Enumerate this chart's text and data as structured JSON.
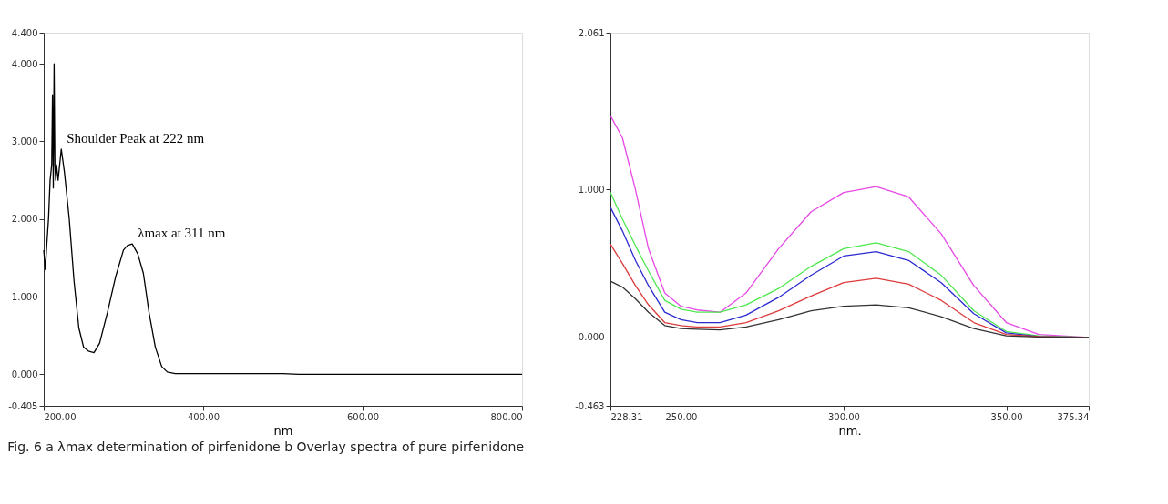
{
  "chart_data": [
    {
      "type": "line",
      "xlabel": "nm",
      "xlim": [
        200,
        800
      ],
      "ylim": [
        -0.405,
        4.4
      ],
      "xticks": [
        {
          "value": 200,
          "label": "200.00"
        },
        {
          "value": 400,
          "label": "400.00"
        },
        {
          "value": 600,
          "label": "600.00"
        },
        {
          "value": 800,
          "label": "800.00"
        }
      ],
      "yticks": [
        {
          "value": -0.405,
          "label": "-0.405"
        },
        {
          "value": 0,
          "label": "0.000"
        },
        {
          "value": 1,
          "label": "1.000"
        },
        {
          "value": 2,
          "label": "2.000"
        },
        {
          "value": 3,
          "label": "3.000"
        },
        {
          "value": 4,
          "label": "4.000"
        },
        {
          "value": 4.4,
          "label": "4.400"
        }
      ],
      "grid": false,
      "line_style": "solid",
      "annotations": [
        {
          "text": "Shoulder Peak at 222 nm",
          "x": 222,
          "y": 2.9
        },
        {
          "text": "λmax at 311 nm",
          "x": 311,
          "y": 1.68
        },
        "Fig. 6  a λmax determination of pirfenidone b Overlay spectra of pure pirfenidone"
      ],
      "series": [
        {
          "color": "#000000",
          "x": [
            200,
            202,
            204,
            206,
            208,
            210,
            211,
            212,
            213,
            214,
            215,
            216,
            218,
            220,
            222,
            226,
            232,
            238,
            244,
            250,
            256,
            263,
            270,
            280,
            290,
            300,
            305,
            311,
            318,
            325,
            332,
            340,
            348,
            355,
            365,
            400,
            500,
            520,
            800
          ],
          "values": [
            1.6,
            1.35,
            1.7,
            2.0,
            2.5,
            2.7,
            3.6,
            2.4,
            4.0,
            2.7,
            2.5,
            2.7,
            2.5,
            2.7,
            2.9,
            2.6,
            2.0,
            1.2,
            0.6,
            0.35,
            0.3,
            0.28,
            0.4,
            0.8,
            1.25,
            1.6,
            1.66,
            1.68,
            1.55,
            1.3,
            0.8,
            0.35,
            0.1,
            0.03,
            0.01,
            0.01,
            0.01,
            0.0,
            0.0
          ]
        }
      ]
    },
    {
      "type": "line",
      "xlabel": "nm.",
      "xlim": [
        228.31,
        375.34
      ],
      "ylim": [
        -0.463,
        2.061
      ],
      "xticks": [
        {
          "value": 228.31,
          "label": "228.31"
        },
        {
          "value": 250,
          "label": "250.00"
        },
        {
          "value": 300,
          "label": "300.00"
        },
        {
          "value": 350,
          "label": "350.00"
        },
        {
          "value": 375.34,
          "label": "375.34"
        }
      ],
      "yticks": [
        {
          "value": -0.463,
          "label": "-0.463"
        },
        {
          "value": 0,
          "label": "0.000"
        },
        {
          "value": 1,
          "label": "1.000"
        },
        {
          "value": 2.061,
          "label": "2.061"
        }
      ],
      "grid": false,
      "line_style": "solid",
      "x": [
        228.31,
        232,
        236,
        240,
        245,
        250,
        255,
        262,
        270,
        280,
        290,
        300,
        310,
        320,
        330,
        340,
        350,
        360,
        375.34
      ],
      "series": [
        {
          "color": "#e648e6",
          "values": [
            1.5,
            1.35,
            1.0,
            0.6,
            0.3,
            0.21,
            0.185,
            0.17,
            0.3,
            0.6,
            0.85,
            0.98,
            1.02,
            0.95,
            0.7,
            0.35,
            0.1,
            0.02,
            0.0
          ]
        },
        {
          "color": "#4ee84e",
          "values": [
            0.98,
            0.8,
            0.62,
            0.45,
            0.25,
            0.19,
            0.17,
            0.17,
            0.22,
            0.33,
            0.48,
            0.6,
            0.64,
            0.58,
            0.42,
            0.18,
            0.04,
            0.01,
            0.0
          ]
        },
        {
          "color": "#2a2ad0",
          "values": [
            0.88,
            0.72,
            0.52,
            0.35,
            0.17,
            0.12,
            0.1,
            0.1,
            0.15,
            0.27,
            0.42,
            0.55,
            0.58,
            0.52,
            0.37,
            0.16,
            0.03,
            0.005,
            0.0
          ]
        },
        {
          "color": "#dd3b3b",
          "values": [
            0.63,
            0.5,
            0.35,
            0.22,
            0.1,
            0.08,
            0.07,
            0.07,
            0.1,
            0.18,
            0.28,
            0.37,
            0.4,
            0.36,
            0.25,
            0.1,
            0.02,
            0.005,
            0.0
          ]
        },
        {
          "color": "#333333",
          "values": [
            0.38,
            0.34,
            0.26,
            0.17,
            0.08,
            0.06,
            0.055,
            0.05,
            0.07,
            0.12,
            0.18,
            0.21,
            0.22,
            0.2,
            0.14,
            0.06,
            0.01,
            0.002,
            0.0
          ]
        }
      ]
    }
  ]
}
